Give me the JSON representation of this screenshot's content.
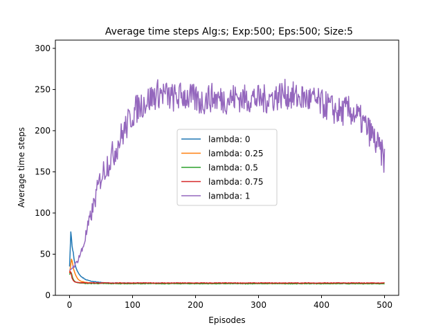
{
  "chart_data": {
    "type": "line",
    "title": "Average time steps Alg:s; Exp:500; Eps:500; Size:5",
    "xlabel": "Episodes",
    "ylabel": "Average time steps",
    "xlim": [
      -22.5,
      522.5
    ],
    "ylim": [
      0,
      310
    ],
    "xticks": [
      0,
      100,
      200,
      300,
      400,
      500
    ],
    "yticks": [
      0,
      50,
      100,
      150,
      200,
      250,
      300
    ],
    "legend_position": "center",
    "grid": false,
    "series": [
      {
        "name": "lambda: 0",
        "color": "#1f77b4",
        "points": [
          [
            0,
            35
          ],
          [
            1,
            55
          ],
          [
            2,
            77
          ],
          [
            3,
            70
          ],
          [
            4,
            60
          ],
          [
            5,
            55
          ],
          [
            6,
            52
          ],
          [
            7,
            45
          ],
          [
            8,
            40
          ],
          [
            10,
            34
          ],
          [
            12,
            30
          ],
          [
            15,
            26
          ],
          [
            18,
            23
          ],
          [
            22,
            21
          ],
          [
            26,
            19
          ],
          [
            30,
            18
          ],
          [
            35,
            17
          ],
          [
            40,
            16.5
          ],
          [
            45,
            16
          ],
          [
            50,
            15.5
          ],
          [
            60,
            15
          ],
          [
            80,
            15
          ],
          [
            120,
            14.8
          ],
          [
            200,
            14.6
          ],
          [
            300,
            14.6
          ],
          [
            400,
            14.5
          ],
          [
            500,
            14.5
          ]
        ]
      },
      {
        "name": "lambda: 0.25",
        "color": "#ff7f0e",
        "points": [
          [
            0,
            28
          ],
          [
            1,
            32
          ],
          [
            2,
            38
          ],
          [
            3,
            44
          ],
          [
            4,
            42
          ],
          [
            5,
            38
          ],
          [
            6,
            33
          ],
          [
            8,
            28
          ],
          [
            10,
            24
          ],
          [
            13,
            20
          ],
          [
            16,
            18
          ],
          [
            20,
            16.5
          ],
          [
            25,
            15.8
          ],
          [
            30,
            15.3
          ],
          [
            40,
            15
          ],
          [
            60,
            14.8
          ],
          [
            100,
            14.7
          ],
          [
            200,
            14.6
          ],
          [
            300,
            14.5
          ],
          [
            400,
            14.5
          ],
          [
            500,
            14.5
          ]
        ]
      },
      {
        "name": "lambda: 0.5",
        "color": "#2ca02c",
        "points": [
          [
            0,
            25
          ],
          [
            1,
            27
          ],
          [
            2,
            28
          ],
          [
            3,
            27
          ],
          [
            4,
            24
          ],
          [
            5,
            21
          ],
          [
            7,
            18
          ],
          [
            9,
            16.5
          ],
          [
            12,
            15.5
          ],
          [
            16,
            15
          ],
          [
            25,
            14.5
          ],
          [
            50,
            14.3
          ],
          [
            100,
            14.2
          ],
          [
            200,
            14.2
          ],
          [
            300,
            14.2
          ],
          [
            400,
            14.2
          ],
          [
            500,
            14.2
          ]
        ]
      },
      {
        "name": "lambda: 0.75",
        "color": "#d62728",
        "points": [
          [
            0,
            27
          ],
          [
            1,
            29
          ],
          [
            2,
            28
          ],
          [
            3,
            25
          ],
          [
            4,
            21
          ],
          [
            6,
            18
          ],
          [
            8,
            16.5
          ],
          [
            10,
            16
          ],
          [
            15,
            15.5
          ],
          [
            25,
            15.2
          ],
          [
            50,
            15
          ],
          [
            100,
            15
          ],
          [
            200,
            15
          ],
          [
            300,
            15
          ],
          [
            400,
            15
          ],
          [
            500,
            15
          ]
        ]
      },
      {
        "name": "lambda: 1",
        "color": "#9467bd",
        "points": [
          [
            0,
            30
          ],
          [
            10,
            38
          ],
          [
            20,
            55
          ],
          [
            30,
            85
          ],
          [
            40,
            115
          ],
          [
            50,
            145
          ],
          [
            60,
            160
          ],
          [
            70,
            172
          ],
          [
            80,
            190
          ],
          [
            90,
            205
          ],
          [
            100,
            220
          ],
          [
            110,
            230
          ],
          [
            120,
            235
          ],
          [
            130,
            240
          ],
          [
            140,
            245
          ],
          [
            150,
            245
          ],
          [
            160,
            240
          ],
          [
            170,
            240
          ],
          [
            180,
            243
          ],
          [
            190,
            240
          ],
          [
            200,
            238
          ],
          [
            210,
            235
          ],
          [
            220,
            240
          ],
          [
            230,
            240
          ],
          [
            240,
            238
          ],
          [
            250,
            238
          ],
          [
            260,
            240
          ],
          [
            270,
            240
          ],
          [
            280,
            238
          ],
          [
            290,
            240
          ],
          [
            300,
            238
          ],
          [
            310,
            238
          ],
          [
            320,
            240
          ],
          [
            330,
            242
          ],
          [
            340,
            245
          ],
          [
            350,
            243
          ],
          [
            360,
            240
          ],
          [
            370,
            240
          ],
          [
            380,
            238
          ],
          [
            390,
            236
          ],
          [
            400,
            232
          ],
          [
            410,
            230
          ],
          [
            420,
            225
          ],
          [
            430,
            222
          ],
          [
            440,
            225
          ],
          [
            450,
            222
          ],
          [
            460,
            215
          ],
          [
            470,
            205
          ],
          [
            480,
            195
          ],
          [
            490,
            180
          ],
          [
            500,
            165
          ]
        ],
        "noise": 18
      }
    ]
  }
}
